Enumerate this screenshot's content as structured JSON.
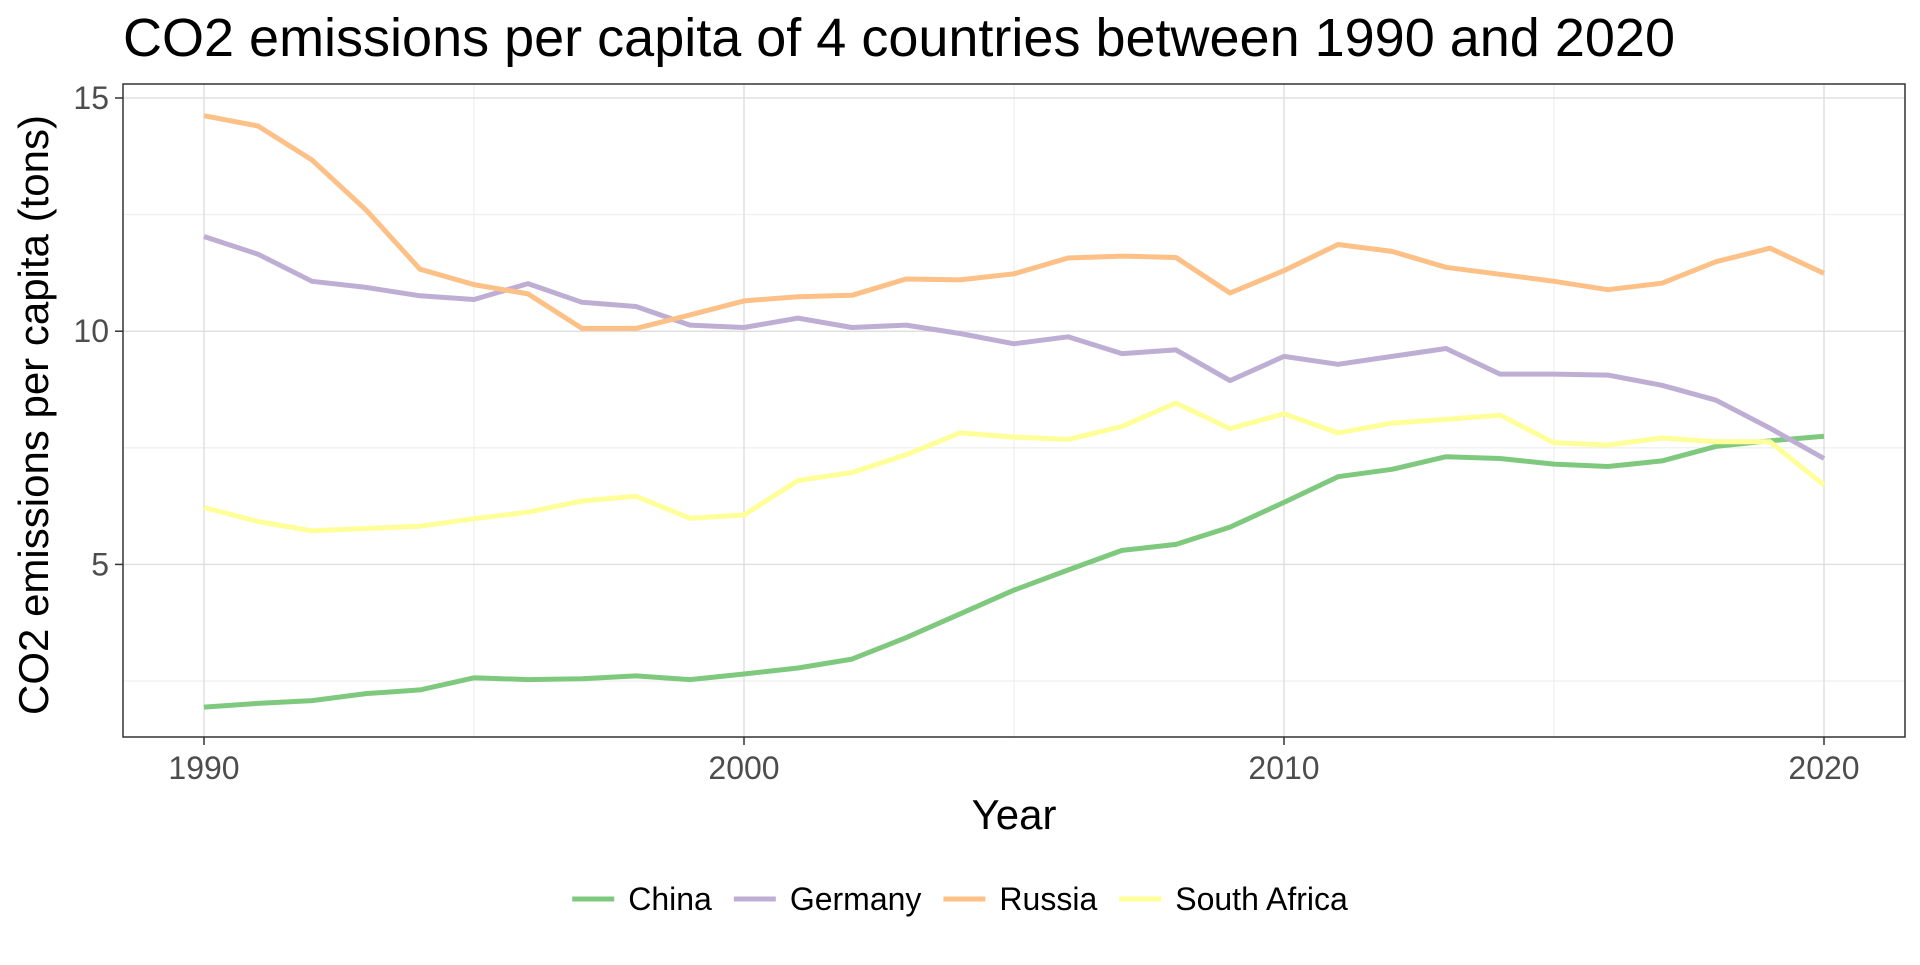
{
  "chart_data": {
    "type": "line",
    "title": "CO2 emissions per capita of 4 countries between 1990 and 2020",
    "xlabel": "Year",
    "ylabel": "CO2 emissions per capita (tons)",
    "xlim": [
      1988.5,
      2021.5
    ],
    "ylim": [
      1.3,
      15.3
    ],
    "xticks": [
      1990,
      2000,
      2010,
      2020
    ],
    "xtick_labels": [
      "1990",
      "2000",
      "2010",
      "2020"
    ],
    "yticks": [
      5,
      10,
      15
    ],
    "ytick_labels": [
      "5",
      "10",
      "15"
    ],
    "grid": true,
    "legend_position": "bottom",
    "x": [
      1990,
      1991,
      1992,
      1993,
      1994,
      1995,
      1996,
      1997,
      1998,
      1999,
      2000,
      2001,
      2002,
      2003,
      2004,
      2005,
      2006,
      2007,
      2008,
      2009,
      2010,
      2011,
      2012,
      2013,
      2014,
      2015,
      2016,
      2017,
      2018,
      2019,
      2020
    ],
    "series": [
      {
        "name": "China",
        "color": "#7fc97f",
        "values": [
          1.94,
          2.02,
          2.08,
          2.23,
          2.31,
          2.57,
          2.53,
          2.55,
          2.61,
          2.53,
          2.65,
          2.78,
          2.97,
          3.43,
          3.94,
          4.45,
          4.88,
          5.3,
          5.43,
          5.8,
          6.33,
          6.88,
          7.04,
          7.31,
          7.27,
          7.15,
          7.1,
          7.22,
          7.53,
          7.65,
          7.75
        ]
      },
      {
        "name": "Germany",
        "color": "#beaed4",
        "values": [
          12.03,
          11.65,
          11.07,
          10.94,
          10.76,
          10.68,
          11.02,
          10.62,
          10.53,
          10.13,
          10.08,
          10.28,
          10.08,
          10.13,
          9.95,
          9.73,
          9.88,
          9.52,
          9.6,
          8.94,
          9.46,
          9.29,
          9.46,
          9.63,
          9.08,
          9.08,
          9.06,
          8.84,
          8.52,
          7.92,
          7.27
        ]
      },
      {
        "name": "Russia",
        "color": "#fdc086",
        "values": [
          14.62,
          14.4,
          13.67,
          12.6,
          11.33,
          11.0,
          10.8,
          10.06,
          10.06,
          10.35,
          10.65,
          10.74,
          10.77,
          11.12,
          11.1,
          11.23,
          11.57,
          11.61,
          11.58,
          10.82,
          11.3,
          11.86,
          11.71,
          11.37,
          11.22,
          11.07,
          10.89,
          11.03,
          11.49,
          11.78,
          11.24
        ]
      },
      {
        "name": "South Africa",
        "color": "#ffff99",
        "values": [
          6.22,
          5.92,
          5.72,
          5.77,
          5.82,
          5.98,
          6.12,
          6.36,
          6.46,
          5.99,
          6.06,
          6.8,
          6.97,
          7.35,
          7.82,
          7.73,
          7.68,
          7.96,
          8.46,
          7.91,
          8.23,
          7.82,
          8.03,
          8.11,
          8.2,
          7.61,
          7.56,
          7.71,
          7.63,
          7.63,
          6.7
        ]
      }
    ]
  }
}
